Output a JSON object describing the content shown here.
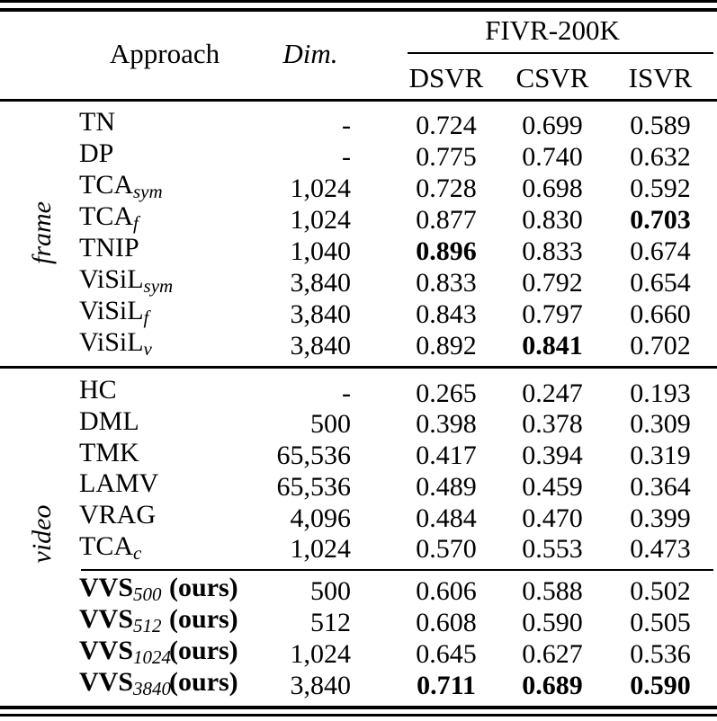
{
  "page": {
    "background": "#ffffff",
    "text_color": "#000000",
    "rule_color": "#000000"
  },
  "table": {
    "header": {
      "approach_label": "Approach",
      "dim_label": "Dim.",
      "group_label": "FIVR-200K",
      "metrics": [
        "DSVR",
        "CSVR",
        "ISVR"
      ]
    },
    "side_labels": {
      "frame": "frame",
      "video": "video"
    },
    "sections": [
      {
        "label": "frame",
        "rows": [
          {
            "name": "TN",
            "sub": "",
            "dim": "-",
            "dsvr": "0.724",
            "csvr": "0.699",
            "isvr": "0.589"
          },
          {
            "name": "DP",
            "sub": "",
            "dim": "-",
            "dsvr": "0.775",
            "csvr": "0.740",
            "isvr": "0.632"
          },
          {
            "name": "TCA",
            "sub": "sym",
            "dim": "1,024",
            "dsvr": "0.728",
            "csvr": "0.698",
            "isvr": "0.592"
          },
          {
            "name": "TCA",
            "sub": "f",
            "dim": "1,024",
            "dsvr": "0.877",
            "csvr": "0.830",
            "isvr": "0.703",
            "bold": [
              "isvr"
            ]
          },
          {
            "name": "TNIP",
            "sub": "",
            "dim": "1,040",
            "dsvr": "0.896",
            "csvr": "0.833",
            "isvr": "0.674",
            "bold": [
              "dsvr"
            ]
          },
          {
            "name": "ViSiL",
            "sub": "sym",
            "dim": "3,840",
            "dsvr": "0.833",
            "csvr": "0.792",
            "isvr": "0.654"
          },
          {
            "name": "ViSiL",
            "sub": "f",
            "dim": "3,840",
            "dsvr": "0.843",
            "csvr": "0.797",
            "isvr": "0.660"
          },
          {
            "name": "ViSiL",
            "sub": "v",
            "dim": "3,840",
            "dsvr": "0.892",
            "csvr": "0.841",
            "isvr": "0.702",
            "bold": [
              "csvr"
            ]
          }
        ]
      },
      {
        "label": "video",
        "rows": [
          {
            "name": "HC",
            "sub": "",
            "dim": "-",
            "dsvr": "0.265",
            "csvr": "0.247",
            "isvr": "0.193"
          },
          {
            "name": "DML",
            "sub": "",
            "dim": "500",
            "dsvr": "0.398",
            "csvr": "0.378",
            "isvr": "0.309"
          },
          {
            "name": "TMK",
            "sub": "",
            "dim": "65,536",
            "dsvr": "0.417",
            "csvr": "0.394",
            "isvr": "0.319"
          },
          {
            "name": "LAMV",
            "sub": "",
            "dim": "65,536",
            "dsvr": "0.489",
            "csvr": "0.459",
            "isvr": "0.364"
          },
          {
            "name": "VRAG",
            "sub": "",
            "dim": "4,096",
            "dsvr": "0.484",
            "csvr": "0.470",
            "isvr": "0.399"
          },
          {
            "name": "TCA",
            "sub": "c",
            "dim": "1,024",
            "dsvr": "0.570",
            "csvr": "0.553",
            "isvr": "0.473"
          }
        ]
      },
      {
        "label": "",
        "rows": [
          {
            "name": "VVS",
            "sub": "500",
            "suffix": "(ours)",
            "dim": "500",
            "dsvr": "0.606",
            "csvr": "0.588",
            "isvr": "0.502"
          },
          {
            "name": "VVS",
            "sub": "512",
            "suffix": "(ours)",
            "dim": "512",
            "dsvr": "0.608",
            "csvr": "0.590",
            "isvr": "0.505"
          },
          {
            "name": "VVS",
            "sub": "1024",
            "suffix": "(ours)",
            "dim": "1,024",
            "dsvr": "0.645",
            "csvr": "0.627",
            "isvr": "0.536"
          },
          {
            "name": "VVS",
            "sub": "3840",
            "suffix": "(ours)",
            "dim": "3,840",
            "dsvr": "0.711",
            "csvr": "0.689",
            "isvr": "0.590",
            "bold": [
              "dsvr",
              "csvr",
              "isvr"
            ]
          }
        ]
      }
    ]
  }
}
